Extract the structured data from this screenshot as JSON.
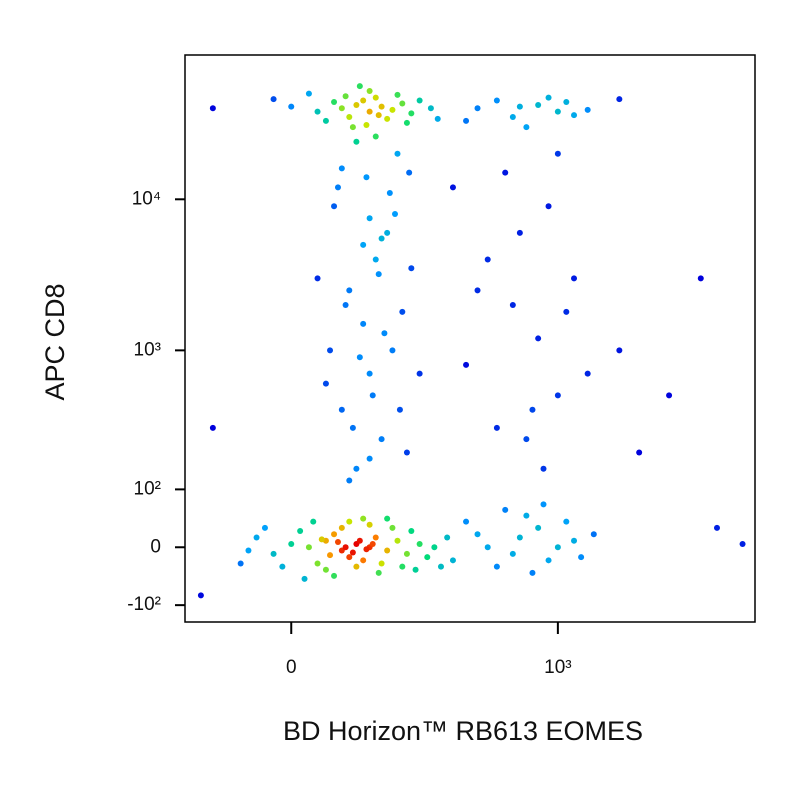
{
  "chart_data": {
    "type": "scatter",
    "x_label": "BD Horizon™ RB613 EOMES",
    "y_label": "APC CD8",
    "xscale": "biexponential",
    "yscale": "biexponential",
    "xlim": [
      -150,
      9200
    ],
    "ylim": [
      -140,
      90000
    ],
    "xticks": [
      0,
      {
        "value": 1000,
        "label": "10³"
      }
    ],
    "yticks": [
      {
        "value": -100,
        "label": "-10²"
      },
      0,
      {
        "value": 100,
        "label": "10²"
      },
      {
        "value": 1000,
        "label": "10³"
      },
      {
        "value": 10000,
        "label": "10⁴"
      }
    ],
    "color_by_density": true,
    "x": [
      20,
      40,
      60,
      80,
      100,
      70,
      50,
      90,
      110,
      30,
      0,
      -20,
      130,
      150,
      60,
      80,
      120,
      40,
      10,
      -40,
      170,
      200,
      100,
      70,
      140,
      -10,
      50,
      90,
      180,
      220,
      -50,
      25,
      115,
      160,
      65,
      85,
      75,
      95,
      55,
      45,
      105,
      35,
      -30,
      240,
      190,
      130,
      -60,
      15,
      280,
      260,
      60,
      80,
      100,
      120,
      90,
      70,
      110,
      140,
      50,
      130,
      160,
      30,
      100,
      75,
      180,
      0,
      200,
      150,
      40,
      115,
      -20,
      230,
      95,
      65,
      170,
      20,
      250,
      85,
      80,
      120,
      60,
      100,
      140,
      90,
      70,
      110,
      130,
      50,
      95,
      150,
      75,
      105,
      85,
      125,
      65,
      115,
      90,
      100,
      135,
      60,
      80,
      170,
      40,
      160,
      180,
      55,
      145,
      100,
      70,
      120,
      30,
      200,
      175,
      110,
      45,
      155,
      400,
      600,
      800,
      1000,
      500,
      700,
      900,
      1200,
      350,
      550,
      750,
      1100,
      450,
      650,
      1300,
      300,
      850,
      1500,
      500,
      800,
      400,
      1000,
      650,
      1200,
      350,
      900,
      550,
      750,
      1100,
      450,
      300,
      1400,
      600,
      1000,
      850,
      2000,
      700,
      400,
      600,
      800,
      1000,
      500,
      700,
      900,
      1200,
      350,
      1100,
      650,
      1400,
      2000,
      3500,
      5000,
      8000,
      6000,
      2500,
      -100,
      -120,
      -100
    ],
    "values": [
      0,
      10,
      -5,
      5,
      0,
      -15,
      20,
      -20,
      15,
      -25,
      5,
      -10,
      -5,
      10,
      30,
      -30,
      -25,
      -35,
      25,
      15,
      -10,
      5,
      35,
      40,
      30,
      -30,
      -45,
      45,
      25,
      -15,
      -5,
      40,
      -40,
      -30,
      0,
      10,
      -8,
      -3,
      8,
      -12,
      5,
      12,
      30,
      0,
      -35,
      45,
      -25,
      -50,
      15,
      -30,
      40000,
      42000,
      38000,
      41000,
      45000,
      35000,
      47000,
      39000,
      44000,
      34000,
      43000,
      38000,
      52000,
      30000,
      37000,
      41000,
      45000,
      49000,
      33000,
      36000,
      46000,
      40000,
      31000,
      48000,
      32000,
      50000,
      34000,
      56000,
      150,
      250,
      400,
      700,
      1000,
      1500,
      2500,
      4000,
      6000,
      9000,
      14000,
      20000,
      300,
      500,
      900,
      1300,
      2000,
      3200,
      5000,
      7500,
      11000,
      16000,
      24000,
      200,
      600,
      1800,
      3500,
      12000,
      8000,
      180,
      120,
      5500,
      3000,
      700,
      15000,
      26000,
      1000,
      400,
      20,
      -10,
      30,
      0,
      -30,
      50,
      -20,
      10,
      40,
      60,
      -40,
      40,
      0,
      15,
      -15,
      -20,
      70,
      20,
      300,
      1200,
      2500,
      500,
      6000,
      3000,
      800,
      9000,
      15000,
      400,
      1800,
      4000,
      12000,
      700,
      2000,
      20000,
      150,
      1000,
      250,
      40000,
      35000,
      42000,
      38000,
      45000,
      30000,
      47000,
      36000,
      33000,
      44000,
      41000,
      39000,
      46000,
      500,
      3000,
      5,
      30,
      200,
      40000,
      -80,
      300
    ]
  }
}
